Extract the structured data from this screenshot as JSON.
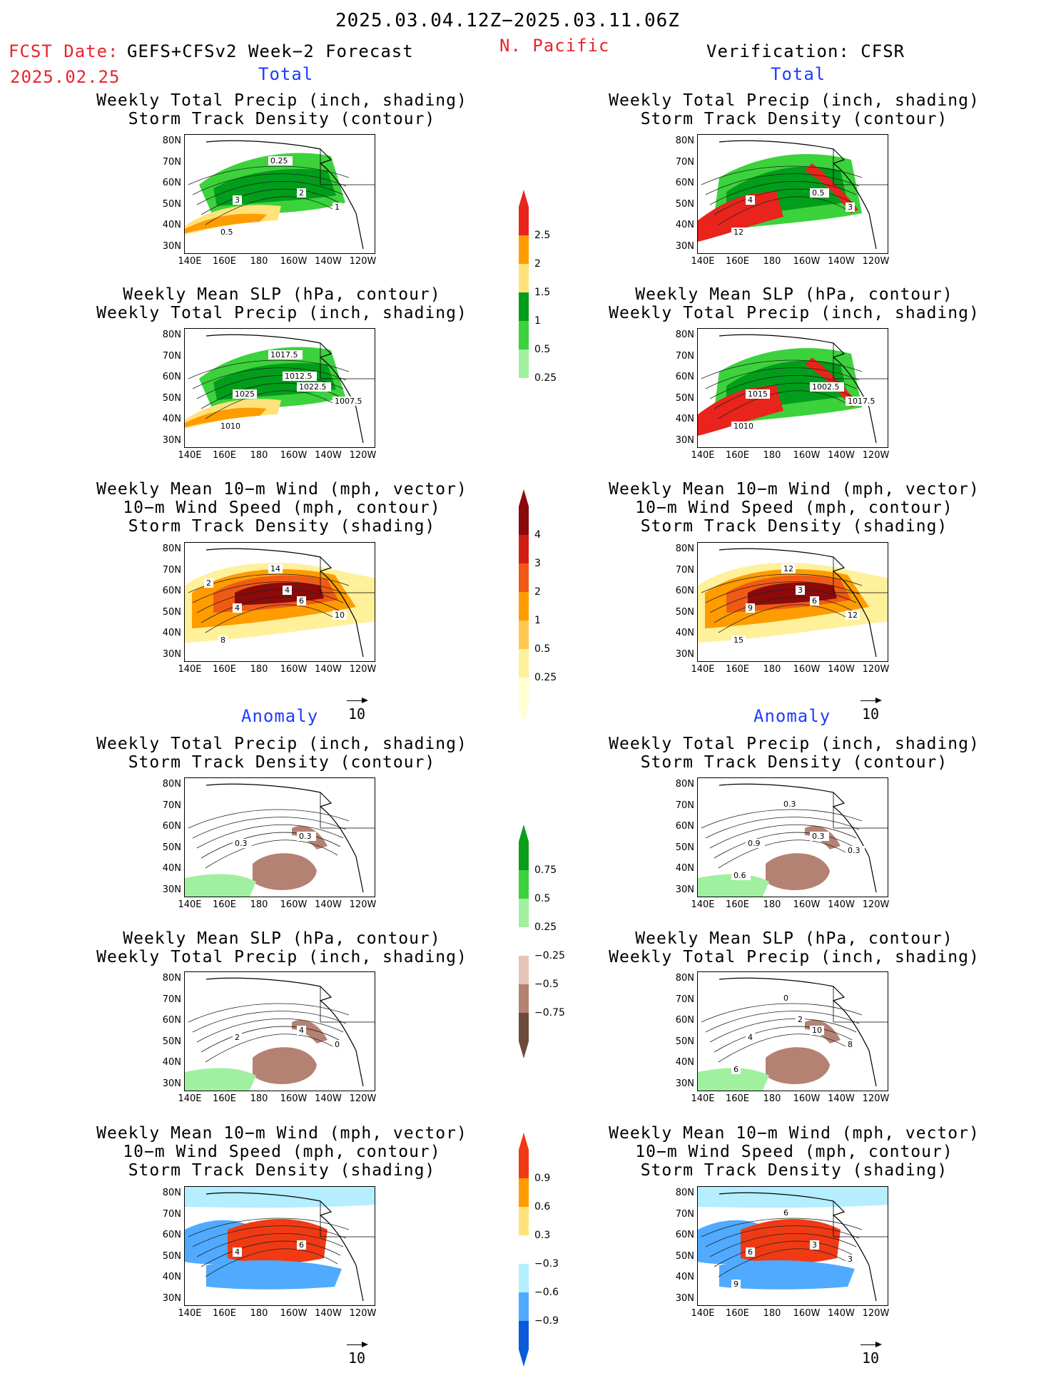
{
  "header": {
    "date_range": "2025.03.04.12Z−2025.03.11.06Z",
    "fcst_label": "FCST Date:",
    "fcst_model": "GEFS+CFSv2 Week−2 Forecast",
    "fcst_date": "2025.02.25",
    "region": "N. Pacific",
    "verification": "Verification: CFSR"
  },
  "sections": {
    "total": "Total",
    "anomaly": "Anomaly"
  },
  "titles": {
    "precip_storm": [
      "Weekly Total Precip (inch, shading)",
      "Storm Track Density (contour)"
    ],
    "slp_precip": [
      "Weekly Mean SLP (hPa, contour)",
      "Weekly Total Precip (inch, shading)"
    ],
    "wind_storm": [
      "Weekly Mean 10−m Wind (mph, vector)",
      "10−m Wind Speed (mph, contour)",
      "Storm Track Density (shading)"
    ]
  },
  "axes": {
    "lat": [
      "80N",
      "70N",
      "60N",
      "50N",
      "40N",
      "30N"
    ],
    "lon": [
      "140E",
      "160E",
      "180",
      "160W",
      "140W",
      "120W"
    ]
  },
  "vector_scale": "10",
  "colorbars": {
    "precip_total": {
      "labels": [
        "2.5",
        "2",
        "1.5",
        "1",
        "0.5",
        "0.25"
      ],
      "colors": [
        "#e8241c",
        "#ff9c00",
        "#ffe27a",
        "#009e1a",
        "#3cd23c",
        "#a0f0a0"
      ]
    },
    "storm_total": {
      "labels": [
        "4",
        "3",
        "2",
        "1",
        "0.5",
        "0.25"
      ],
      "colors": [
        "#8c0a0a",
        "#d21e12",
        "#f05a14",
        "#ff9c00",
        "#ffc850",
        "#fff09a",
        "#ffffd0"
      ]
    },
    "precip_anom": {
      "labels": [
        "0.75",
        "0.5",
        "0.25",
        "−0.25",
        "−0.5",
        "−0.75"
      ],
      "colors": [
        "#0a9e1a",
        "#3cd23c",
        "#a0f0a0",
        "#ffffff",
        "#e8c4b8",
        "#b48272",
        "#6e4a3a"
      ]
    },
    "storm_anom": {
      "labels": [
        "0.9",
        "0.6",
        "0.3",
        "−0.3",
        "−0.6",
        "−0.9"
      ],
      "colors": [
        "#f03a14",
        "#ff9c00",
        "#ffe27a",
        "#ffffff",
        "#b4eeff",
        "#50aaff",
        "#0a5adc"
      ]
    }
  },
  "panels": {
    "fc_precip": [
      "3",
      "2",
      "1",
      "0.5",
      "0.25"
    ],
    "ob_precip": [
      "4",
      "0.5",
      "3",
      "12"
    ],
    "fc_slp": [
      "1025",
      "1022.5",
      "1007.5",
      "1010",
      "1017.5",
      "1012.5"
    ],
    "ob_slp": [
      "1015",
      "1002.5",
      "1017.5",
      "1010"
    ],
    "fc_wind": [
      "4",
      "6",
      "10",
      "8",
      "14",
      "4",
      "2"
    ],
    "ob_wind": [
      "9",
      "6",
      "12",
      "15",
      "12",
      "3"
    ],
    "fa_precip": [
      "0.3",
      "0.3"
    ],
    "oa_precip": [
      "0.9",
      "0.3",
      "0.3",
      "0.6",
      "0.3"
    ],
    "fa_slp": [
      "2",
      "4",
      "0"
    ],
    "oa_slp": [
      "4",
      "10",
      "8",
      "6",
      "0",
      "2"
    ],
    "fa_wind": [
      "4",
      "6"
    ],
    "oa_wind": [
      "6",
      "3",
      "3",
      "9",
      "6"
    ]
  }
}
